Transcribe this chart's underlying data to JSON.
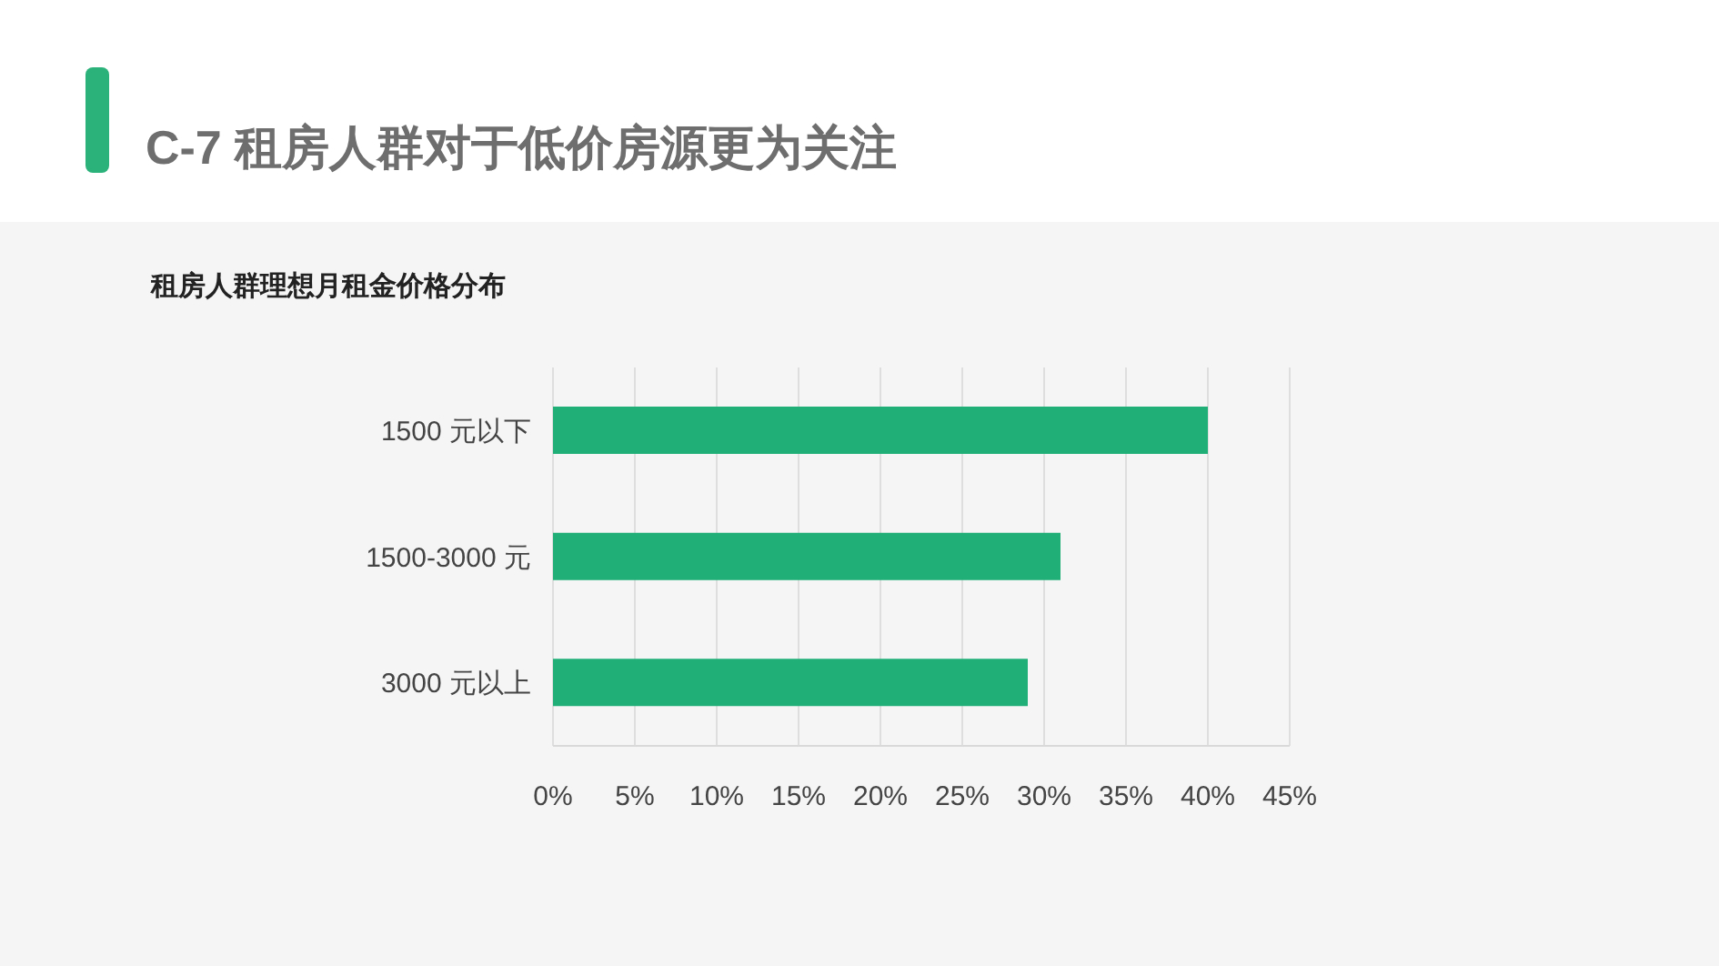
{
  "chart_data": {
    "type": "bar",
    "orientation": "horizontal",
    "title": "C-7 租房人群对于低价房源更为关注",
    "subtitle": "租房人群理想月租金价格分布",
    "categories": [
      "1500 元以下",
      "1500-3000 元",
      "3000 元以上"
    ],
    "values": [
      40,
      31,
      29
    ],
    "color": "#21af78",
    "xlim": [
      0,
      45
    ],
    "xticks": [
      {
        "value": 0,
        "label": "0%"
      },
      {
        "value": 5,
        "label": "5%"
      },
      {
        "value": 10,
        "label": "10%"
      },
      {
        "value": 15,
        "label": "15%"
      },
      {
        "value": 20,
        "label": "20%"
      },
      {
        "value": 25,
        "label": "25%"
      },
      {
        "value": 30,
        "label": "30%"
      },
      {
        "value": 35,
        "label": "35%"
      },
      {
        "value": 40,
        "label": "40%"
      },
      {
        "value": 45,
        "label": "45%"
      }
    ],
    "grid": "x"
  }
}
